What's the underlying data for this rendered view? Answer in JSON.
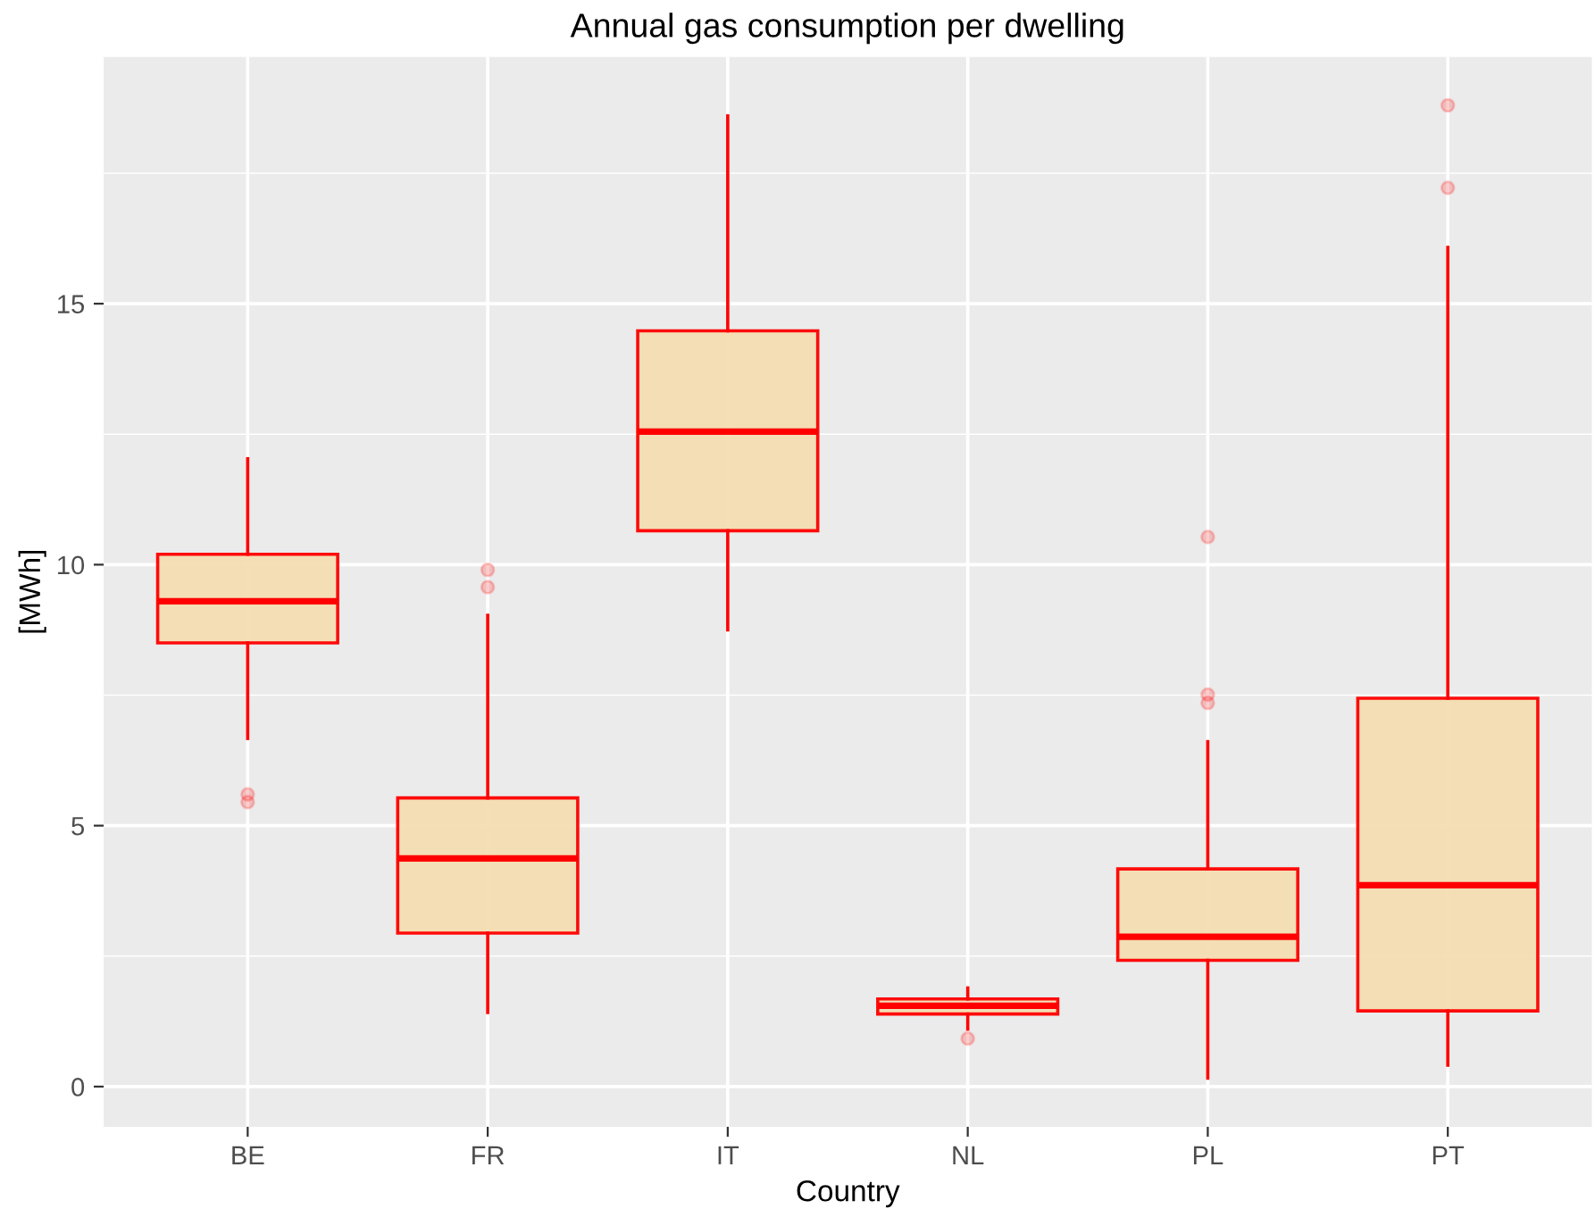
{
  "chart_data": {
    "type": "box",
    "title": "Annual gas consumption per dwelling",
    "xlabel": "Country",
    "ylabel": "[MWh]",
    "categories": [
      "BE",
      "FR",
      "IT",
      "NL",
      "PL",
      "PT"
    ],
    "boxes": [
      {
        "low": 6.67,
        "q1": 8.5,
        "median": 9.3,
        "q3": 10.2,
        "high": 12.03,
        "outliers": [
          5.6,
          5.45
        ]
      },
      {
        "low": 1.42,
        "q1": 2.94,
        "median": 4.37,
        "q3": 5.53,
        "high": 9.03,
        "outliers": [
          9.9,
          9.57
        ]
      },
      {
        "low": 8.75,
        "q1": 10.65,
        "median": 12.55,
        "q3": 14.48,
        "high": 18.6
      },
      {
        "low": 1.1,
        "q1": 1.39,
        "median": 1.55,
        "q3": 1.68,
        "high": 1.89,
        "outliers": [
          0.92
        ]
      },
      {
        "low": 0.16,
        "q1": 2.42,
        "median": 2.87,
        "q3": 4.17,
        "high": 6.61,
        "outliers": [
          10.53,
          7.51,
          7.35
        ]
      },
      {
        "low": 0.41,
        "q1": 1.45,
        "median": 3.86,
        "q3": 7.44,
        "high": 16.08,
        "outliers": [
          18.8,
          17.22
        ]
      }
    ],
    "color": "#ff0000",
    "ylim": [
      -0.77,
      19.73
    ],
    "yticks": [
      0,
      {
        "value": 2.5,
        "label": null
      },
      5,
      {
        "value": 7.5,
        "label": null
      },
      10,
      {
        "value": 12.5,
        "label": null
      },
      15,
      {
        "value": 17.5,
        "label": null
      }
    ],
    "grid": true,
    "legend": false
  }
}
